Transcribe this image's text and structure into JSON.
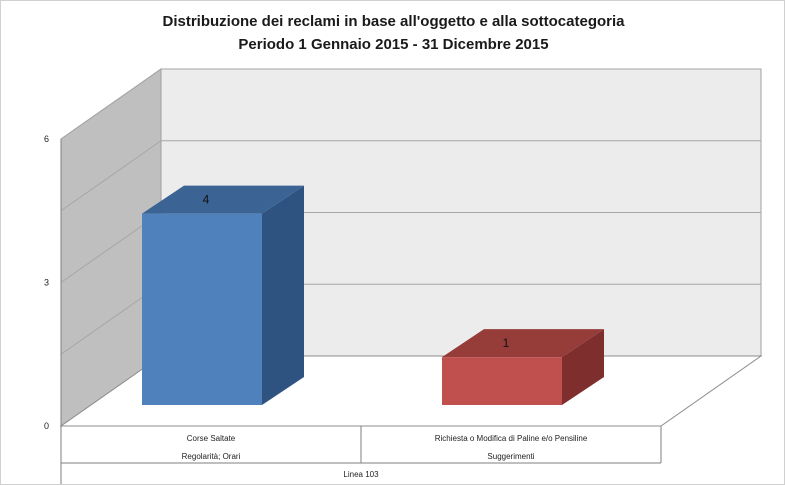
{
  "chart_data": {
    "type": "bar",
    "title": "Distribuzione dei reclami in base all'oggetto e alla sottocategoria",
    "subtitle": "Periodo 1 Gennaio 2015 - 31 Dicembre 2015",
    "categories": [
      {
        "name": "Corse Saltate",
        "group": "Regolarità; Orari",
        "value": 4,
        "color": "#4F81BD",
        "side": "#2F5381",
        "top": "#3B6494"
      },
      {
        "name": "Richiesta o Modifica di Paline e/o Pensiline",
        "group": "Suggerimenti",
        "value": 1,
        "color": "#C0504D",
        "side": "#7E2E2C",
        "top": "#963C39"
      }
    ],
    "outer_group": "Linea 103",
    "y_ticks": [
      0,
      3,
      6
    ],
    "ylim": [
      0,
      6
    ],
    "grid": true,
    "legend": "none"
  }
}
